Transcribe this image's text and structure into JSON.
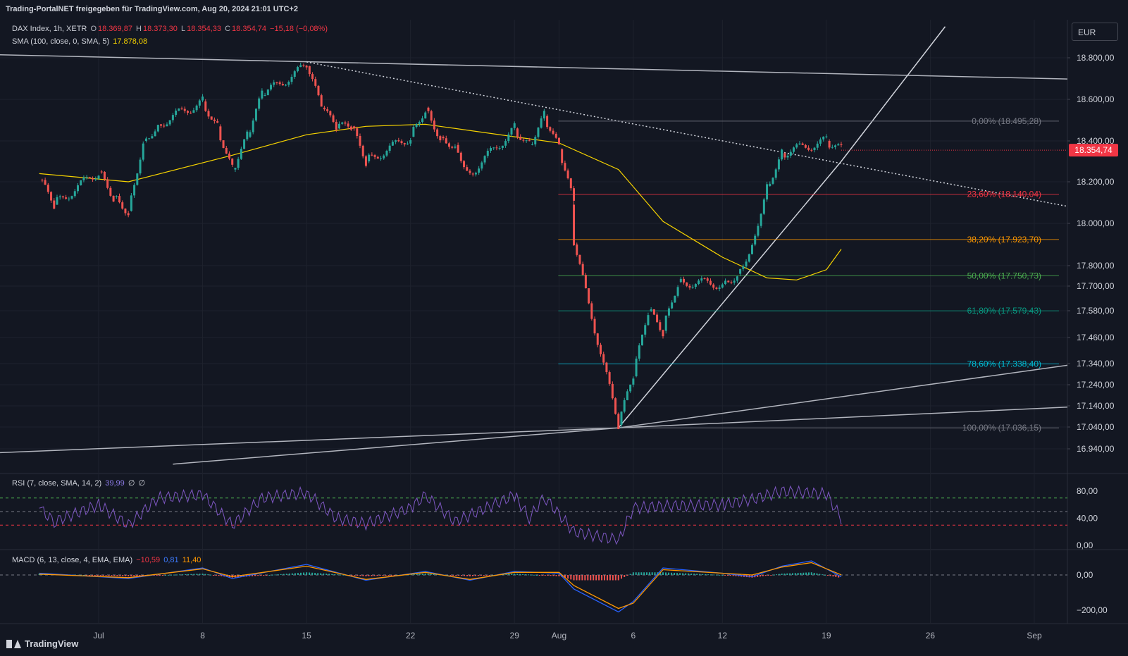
{
  "topbar": {
    "text": "Trading-PortalNET freigegeben für TradingView.com, Aug 20, 2024 21:01 UTC+2"
  },
  "legend": {
    "symbol": "DAX Index, 1h, XETR",
    "open_label": "O",
    "open": "18.369,87",
    "high_label": "H",
    "high": "18.373,30",
    "low_label": "L",
    "low": "18.354,33",
    "close_label": "C",
    "close": "18.354,74",
    "change": "−15,18 (−0,08%)",
    "sma_label": "SMA (100, close, 0, SMA, 5)",
    "sma_value": "17.878,08"
  },
  "rsi_legend": {
    "label": "RSI (7, close, SMA, 14, 2)",
    "value": "39,99",
    "ext1": "∅",
    "ext2": "∅"
  },
  "macd_legend": {
    "label": "MACD (6, 13, close, 4, EMA, EMA)",
    "v1": "−10,59",
    "v2": "0,81",
    "v3": "11,40"
  },
  "currency": "EUR",
  "footer": {
    "brand": "TradingView"
  },
  "colors": {
    "bg": "#131722",
    "up": "#26a69a",
    "down": "#ef5350",
    "sma": "#f5d200",
    "rsi": "#7e57c2",
    "macd": "#2962ff",
    "signal": "#ff9800"
  },
  "chart_data": {
    "type": "line",
    "title": "DAX Index, 1h, XETR",
    "ylim": [
      16870,
      18900
    ],
    "y_ticks": [
      {
        "v": 18800,
        "label": "18.800,00"
      },
      {
        "v": 18600,
        "label": "18.600,00"
      },
      {
        "v": 18400,
        "label": "18.400,00"
      },
      {
        "v": 18200,
        "label": "18.200,00"
      },
      {
        "v": 18000,
        "label": "18.000,00"
      },
      {
        "v": 17800,
        "label": "17.800,00"
      },
      {
        "v": 17700,
        "label": "17.700,00"
      },
      {
        "v": 17580,
        "label": "17.580,00"
      },
      {
        "v": 17460,
        "label": "17.460,00"
      },
      {
        "v": 17340,
        "label": "17.340,00"
      },
      {
        "v": 17240,
        "label": "17.240,00"
      },
      {
        "v": 17140,
        "label": "17.140,00"
      },
      {
        "v": 17040,
        "label": "17.040,00"
      },
      {
        "v": 16940,
        "label": "16.940,00"
      }
    ],
    "x_ticks": [
      {
        "d": "2024-07-01",
        "label": "Jul"
      },
      {
        "d": "2024-07-08",
        "label": "8"
      },
      {
        "d": "2024-07-15",
        "label": "15"
      },
      {
        "d": "2024-07-22",
        "label": "22"
      },
      {
        "d": "2024-07-29",
        "label": "29"
      },
      {
        "d": "2024-08-01",
        "label": "Aug"
      },
      {
        "d": "2024-08-06",
        "label": "6"
      },
      {
        "d": "2024-08-12",
        "label": "12"
      },
      {
        "d": "2024-08-19",
        "label": "19"
      },
      {
        "d": "2024-08-26",
        "label": "26"
      },
      {
        "d": "2024-09-02",
        "label": "Sep"
      }
    ],
    "last_price": {
      "v": 18354.74,
      "label": "18.354,74"
    },
    "price_path": [
      [
        "2024-06-27",
        18210
      ],
      [
        "2024-06-28",
        18090
      ],
      [
        "2024-07-01",
        18250
      ],
      [
        "2024-07-02",
        18130
      ],
      [
        "2024-07-03",
        18060
      ],
      [
        "2024-07-04",
        18400
      ],
      [
        "2024-07-05",
        18480
      ],
      [
        "2024-07-08",
        18590
      ],
      [
        "2024-07-09",
        18470
      ],
      [
        "2024-07-10",
        18260
      ],
      [
        "2024-07-11",
        18420
      ],
      [
        "2024-07-12",
        18620
      ],
      [
        "2024-07-15",
        18760
      ],
      [
        "2024-07-16",
        18560
      ],
      [
        "2024-07-17",
        18460
      ],
      [
        "2024-07-18",
        18470
      ],
      [
        "2024-07-19",
        18300
      ],
      [
        "2024-07-22",
        18420
      ],
      [
        "2024-07-23",
        18560
      ],
      [
        "2024-07-24",
        18420
      ],
      [
        "2024-07-25",
        18380
      ],
      [
        "2024-07-26",
        18240
      ],
      [
        "2024-07-29",
        18460
      ],
      [
        "2024-07-30",
        18380
      ],
      [
        "2024-07-31",
        18520
      ],
      [
        "2024-08-01",
        18360
      ],
      [
        "2024-08-02",
        18090
      ],
      [
        "2024-08-02",
        17900
      ],
      [
        "2024-08-05",
        17050
      ],
      [
        "2024-08-06",
        17280
      ],
      [
        "2024-08-07",
        17580
      ],
      [
        "2024-08-08",
        17490
      ],
      [
        "2024-08-09",
        17720
      ],
      [
        "2024-08-12",
        17710
      ],
      [
        "2024-08-13",
        17760
      ],
      [
        "2024-08-14",
        17900
      ],
      [
        "2024-08-15",
        18180
      ],
      [
        "2024-08-16",
        18340
      ],
      [
        "2024-08-19",
        18400
      ],
      [
        "2024-08-20",
        18354.74
      ]
    ],
    "sma_path": [
      [
        "2024-06-27",
        18240
      ],
      [
        "2024-07-03",
        18200
      ],
      [
        "2024-07-10",
        18330
      ],
      [
        "2024-07-15",
        18430
      ],
      [
        "2024-07-19",
        18470
      ],
      [
        "2024-07-23",
        18480
      ],
      [
        "2024-07-29",
        18420
      ],
      [
        "2024-08-01",
        18390
      ],
      [
        "2024-08-05",
        18260
      ],
      [
        "2024-08-08",
        18010
      ],
      [
        "2024-08-12",
        17840
      ],
      [
        "2024-08-15",
        17740
      ],
      [
        "2024-08-17",
        17730
      ],
      [
        "2024-08-19",
        17780
      ],
      [
        "2024-08-20",
        17878.08
      ]
    ],
    "fib": [
      {
        "level": "0,00%",
        "value": 18495.28,
        "label": "0,00% (18.495,28)",
        "color": "#787b86"
      },
      {
        "level": "23,60%",
        "value": 18140.04,
        "label": "23,60% (18.140,04)",
        "color": "#f23645"
      },
      {
        "level": "38,20%",
        "value": 17923.7,
        "label": "38,20% (17.923,70)",
        "color": "#ff9800"
      },
      {
        "level": "50,00%",
        "value": 17750.73,
        "label": "50,00% (17.750,73)",
        "color": "#4caf50"
      },
      {
        "level": "61,80%",
        "value": 17579.43,
        "label": "61,80% (17.579,43)",
        "color": "#089981"
      },
      {
        "level": "78,60%",
        "value": 17338.4,
        "label": "78,60% (17.338,40)",
        "color": "#00bcd4"
      },
      {
        "level": "100,00%",
        "value": 17036.15,
        "label": "100,00% (17.036,15)",
        "color": "#787b86"
      }
    ],
    "rsi": {
      "levels": [
        70,
        50,
        30
      ],
      "ticks": [
        {
          "v": 80,
          "label": "80,00"
        },
        {
          "v": 40,
          "label": "40,00"
        },
        {
          "v": 0,
          "label": "0,00"
        }
      ],
      "ylim": [
        0,
        100
      ],
      "path": [
        [
          "2024-06-27",
          55
        ],
        [
          "2024-06-28",
          35
        ],
        [
          "2024-07-01",
          60
        ],
        [
          "2024-07-03",
          30
        ],
        [
          "2024-07-05",
          70
        ],
        [
          "2024-07-08",
          75
        ],
        [
          "2024-07-10",
          30
        ],
        [
          "2024-07-12",
          70
        ],
        [
          "2024-07-15",
          78
        ],
        [
          "2024-07-17",
          40
        ],
        [
          "2024-07-19",
          32
        ],
        [
          "2024-07-22",
          55
        ],
        [
          "2024-07-23",
          74
        ],
        [
          "2024-07-25",
          35
        ],
        [
          "2024-07-29",
          74
        ],
        [
          "2024-07-30",
          40
        ],
        [
          "2024-07-31",
          72
        ],
        [
          "2024-08-02",
          20
        ],
        [
          "2024-08-05",
          8
        ],
        [
          "2024-08-06",
          55
        ],
        [
          "2024-08-08",
          58
        ],
        [
          "2024-08-12",
          60
        ],
        [
          "2024-08-14",
          68
        ],
        [
          "2024-08-16",
          80
        ],
        [
          "2024-08-19",
          76
        ],
        [
          "2024-08-20",
          39.99
        ]
      ]
    },
    "macd": {
      "ticks": [
        {
          "v": 0,
          "label": "0,00"
        },
        {
          "v": -200,
          "label": "−200,00"
        }
      ],
      "ylim": [
        -260,
        120
      ],
      "macd_path": [
        [
          "2024-06-27",
          10
        ],
        [
          "2024-07-03",
          -20
        ],
        [
          "2024-07-08",
          40
        ],
        [
          "2024-07-10",
          -20
        ],
        [
          "2024-07-15",
          60
        ],
        [
          "2024-07-19",
          -30
        ],
        [
          "2024-07-23",
          20
        ],
        [
          "2024-07-26",
          -30
        ],
        [
          "2024-07-29",
          20
        ],
        [
          "2024-08-01",
          10
        ],
        [
          "2024-08-02",
          -80
        ],
        [
          "2024-08-05",
          -210
        ],
        [
          "2024-08-06",
          -150
        ],
        [
          "2024-08-08",
          40
        ],
        [
          "2024-08-12",
          10
        ],
        [
          "2024-08-14",
          -10
        ],
        [
          "2024-08-16",
          50
        ],
        [
          "2024-08-18",
          80
        ],
        [
          "2024-08-20",
          -10.59
        ]
      ],
      "signal_path": [
        [
          "2024-06-27",
          5
        ],
        [
          "2024-07-03",
          -15
        ],
        [
          "2024-07-08",
          35
        ],
        [
          "2024-07-10",
          -10
        ],
        [
          "2024-07-15",
          50
        ],
        [
          "2024-07-19",
          -25
        ],
        [
          "2024-07-23",
          15
        ],
        [
          "2024-07-26",
          -25
        ],
        [
          "2024-07-29",
          15
        ],
        [
          "2024-08-01",
          15
        ],
        [
          "2024-08-02",
          -60
        ],
        [
          "2024-08-05",
          -190
        ],
        [
          "2024-08-06",
          -160
        ],
        [
          "2024-08-08",
          30
        ],
        [
          "2024-08-12",
          10
        ],
        [
          "2024-08-14",
          0
        ],
        [
          "2024-08-16",
          45
        ],
        [
          "2024-08-18",
          70
        ],
        [
          "2024-08-20",
          0.81
        ]
      ]
    }
  }
}
